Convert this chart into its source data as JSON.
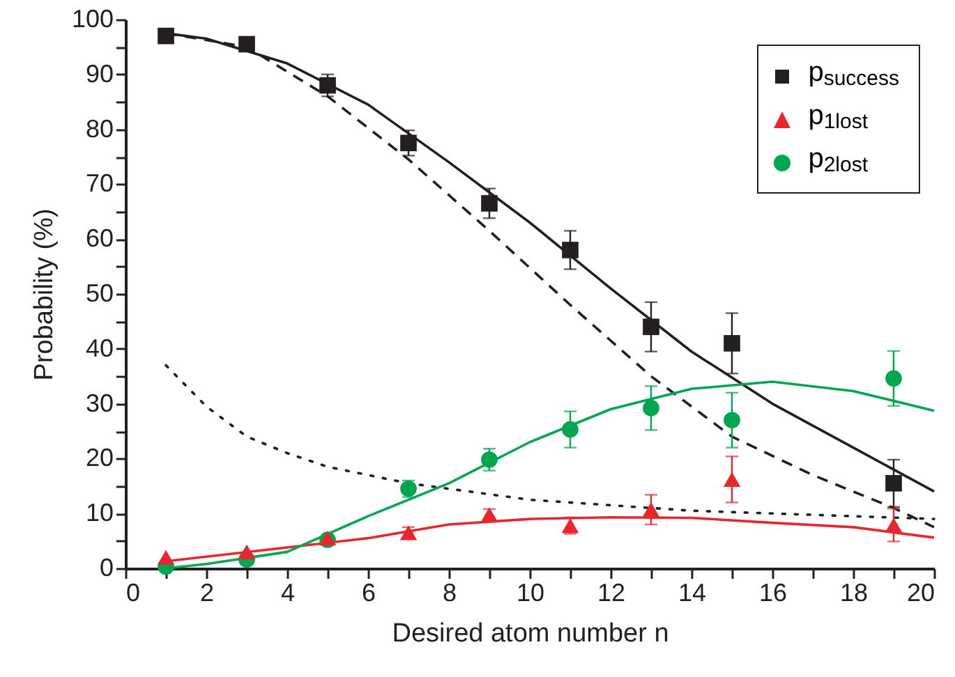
{
  "chart_data": {
    "type": "scatter",
    "xlabel": "Desired atom number n",
    "ylabel": "Probability (%)",
    "xlim": [
      0,
      20
    ],
    "ylim": [
      0,
      100
    ],
    "xticks": [
      0,
      {
        "value": 1,
        "label": null
      },
      2,
      {
        "value": 3,
        "label": null
      },
      4,
      {
        "value": 5,
        "label": null
      },
      6,
      {
        "value": 7,
        "label": null
      },
      8,
      {
        "value": 9,
        "label": null
      },
      10,
      {
        "value": 11,
        "label": null
      },
      12,
      {
        "value": 13,
        "label": null
      },
      14,
      {
        "value": 15,
        "label": null
      },
      16,
      {
        "value": 17,
        "label": null
      },
      18,
      {
        "value": 19,
        "label": null
      },
      20
    ],
    "yticks": [
      0,
      {
        "value": 5,
        "label": null
      },
      10,
      {
        "value": 15,
        "label": null
      },
      20,
      {
        "value": 25,
        "label": null
      },
      30,
      {
        "value": 35,
        "label": null
      },
      40,
      {
        "value": 45,
        "label": null
      },
      50,
      {
        "value": 55,
        "label": null
      },
      60,
      {
        "value": 65,
        "label": null
      },
      70,
      {
        "value": 75,
        "label": null
      },
      80,
      {
        "value": 85,
        "label": null
      },
      90,
      {
        "value": 95,
        "label": null
      },
      100
    ],
    "grid": false,
    "legend": "top right",
    "series": [
      {
        "type": "line",
        "color": "#231f20",
        "line_style": "solid",
        "x": [
          1,
          2,
          4,
          6,
          8,
          10,
          12,
          14,
          16,
          18,
          20
        ],
        "values": [
          97.5,
          96.5,
          92,
          84.5,
          74,
          63,
          51,
          39.5,
          30,
          22,
          14
        ]
      },
      {
        "type": "line",
        "color": "#231f20",
        "line_style": "dashed",
        "x": [
          1,
          3,
          5,
          7,
          9,
          11,
          13,
          15,
          17,
          19,
          20
        ],
        "values": [
          97.5,
          95,
          86,
          74.5,
          61.5,
          48,
          35,
          24,
          17,
          11,
          7.5
        ]
      },
      {
        "type": "line",
        "color": "#231f20",
        "line_style": "dotted",
        "x": [
          1,
          2,
          3,
          4,
          5,
          6,
          7,
          8,
          10,
          12,
          14,
          16,
          18,
          20
        ],
        "values": [
          37,
          29.5,
          24,
          21,
          18.5,
          17,
          15.5,
          14.5,
          12.5,
          11.5,
          10.5,
          10,
          9.5,
          9
        ]
      },
      {
        "type": "line",
        "color": "#e8262b",
        "line_style": "solid",
        "x": [
          1,
          4,
          6,
          8,
          10,
          12,
          14,
          16,
          18,
          20
        ],
        "values": [
          1.3,
          3.8,
          5.5,
          8,
          9,
          9.3,
          9.2,
          8.3,
          7.5,
          5.6
        ]
      },
      {
        "type": "line",
        "color": "#00a650",
        "line_style": "solid",
        "x": [
          1,
          2,
          4,
          6,
          8,
          10,
          12,
          14,
          16,
          18,
          20
        ],
        "values": [
          0,
          0.8,
          3,
          9.5,
          15.5,
          23,
          29,
          32.7,
          34,
          32.3,
          28.7
        ]
      },
      {
        "name": "p$_{success}$",
        "color": "#231f20",
        "marker": "square",
        "x": [
          1,
          3,
          5,
          7,
          9,
          11,
          13,
          15,
          19
        ],
        "values": [
          97,
          95.5,
          88,
          77.5,
          66.5,
          58,
          44,
          41,
          15.5
        ],
        "errors": [
          null,
          null,
          2,
          2.3,
          2.7,
          3.5,
          4.5,
          5.5,
          4.3
        ]
      },
      {
        "name": "p$_{1lost}$",
        "color": "#e8262b",
        "marker": "triangle",
        "x": [
          1,
          3,
          5,
          7,
          9,
          11,
          13,
          15,
          19
        ],
        "values": [
          2,
          3,
          5.5,
          6.5,
          9.8,
          7.8,
          10.7,
          16.2,
          7.9
        ],
        "errors": [
          null,
          null,
          null,
          1,
          1,
          1.5,
          2.7,
          4.2,
          3
        ]
      },
      {
        "name": "p$_{2lost}$",
        "color": "#00a650",
        "marker": "circle",
        "x": [
          1,
          3,
          5,
          7,
          9,
          11,
          13,
          15,
          19
        ],
        "values": [
          0.3,
          1.6,
          5.2,
          14.5,
          19.8,
          25.3,
          29.2,
          27,
          34.6
        ],
        "errors": [
          null,
          null,
          null,
          1.5,
          2,
          3.3,
          4,
          5,
          5
        ]
      }
    ]
  }
}
